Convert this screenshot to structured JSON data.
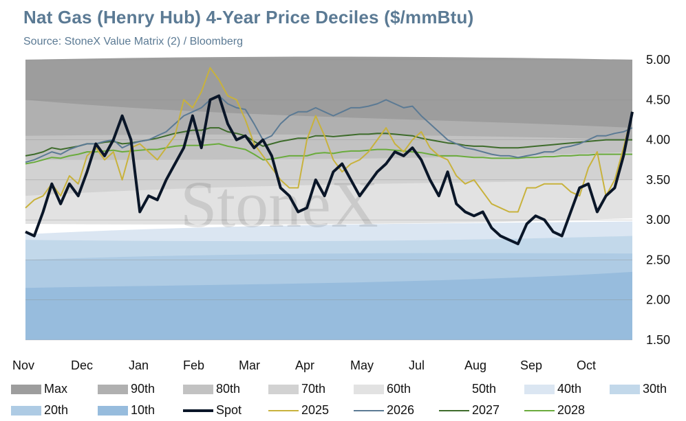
{
  "title": "Nat Gas (Henry Hub) 4-Year Price Deciles ($/mmBtu)",
  "subtitle": "Source: StoneX Value Matrix (2) / Bloomberg",
  "watermark": "StoneX",
  "chart_data": {
    "type": "area",
    "x_labels": [
      "Nov",
      "Dec",
      "Jan",
      "Feb",
      "Mar",
      "Apr",
      "May",
      "Jul",
      "Aug",
      "Sep",
      "Oct"
    ],
    "y_ticks": [
      "5.00",
      "4.50",
      "4.00",
      "3.50",
      "3.00",
      "2.50",
      "2.00",
      "1.50"
    ],
    "ylim": [
      1.5,
      5.0
    ],
    "y_axis_side": "right",
    "bands": [
      {
        "name": "Max",
        "color": "#9d9d9d",
        "start": 5.0,
        "end": 5.0
      },
      {
        "name": "90th",
        "color": "#b0b0b0",
        "start": 4.5,
        "end": 4.15
      },
      {
        "name": "80th",
        "color": "#c2c2c2",
        "start": 4.05,
        "end": 4.0
      },
      {
        "name": "70th",
        "color": "#d2d2d2",
        "start": 3.75,
        "end": 3.85
      },
      {
        "name": "60th",
        "color": "#e2e2e2",
        "start": 3.3,
        "end": 3.5
      },
      {
        "name": "50th",
        "color": "#ffffff",
        "start": 2.95,
        "end": 3.02
      },
      {
        "name": "40th",
        "color": "#dbe6f2",
        "start": 2.82,
        "end": 2.98
      },
      {
        "name": "30th",
        "color": "#c2d8ea",
        "start": 2.75,
        "end": 2.8
      },
      {
        "name": "20th",
        "color": "#aecbe4",
        "start": 2.5,
        "end": 2.58
      },
      {
        "name": "10th",
        "color": "#97bcdd",
        "start": 2.15,
        "end": 2.35
      }
    ],
    "series": [
      {
        "name": "Spot",
        "color": "#0a1628",
        "width": 4,
        "values": [
          2.85,
          2.8,
          3.1,
          3.45,
          3.2,
          3.45,
          3.3,
          3.6,
          3.95,
          3.8,
          4.0,
          4.3,
          4.0,
          3.1,
          3.3,
          3.25,
          3.5,
          3.7,
          3.9,
          4.3,
          3.9,
          4.5,
          4.55,
          4.2,
          4.0,
          4.05,
          3.9,
          4.0,
          3.8,
          3.4,
          3.3,
          3.1,
          3.15,
          3.5,
          3.3,
          3.6,
          3.7,
          3.5,
          3.3,
          3.45,
          3.6,
          3.7,
          3.85,
          3.8,
          3.9,
          3.75,
          3.5,
          3.3,
          3.6,
          3.2,
          3.1,
          3.05,
          3.1,
          2.9,
          2.8,
          2.75,
          2.7,
          2.95,
          3.05,
          3.0,
          2.85,
          2.8,
          3.1,
          3.4,
          3.45,
          3.1,
          3.3,
          3.4,
          3.8,
          4.35
        ]
      },
      {
        "name": "2025",
        "color": "#c8b23c",
        "width": 2,
        "values": [
          3.15,
          3.25,
          3.3,
          3.45,
          3.3,
          3.55,
          3.45,
          3.8,
          3.9,
          3.75,
          3.85,
          3.5,
          3.9,
          3.95,
          3.85,
          3.75,
          3.9,
          4.05,
          4.5,
          4.4,
          4.6,
          4.9,
          4.75,
          4.55,
          4.5,
          4.25,
          3.95,
          3.8,
          3.65,
          3.5,
          3.4,
          3.4,
          4.0,
          4.3,
          4.05,
          3.75,
          3.6,
          3.7,
          3.75,
          3.85,
          4.0,
          4.15,
          3.95,
          3.85,
          4.0,
          4.1,
          3.9,
          3.8,
          3.75,
          3.55,
          3.45,
          3.5,
          3.35,
          3.2,
          3.15,
          3.1,
          3.1,
          3.4,
          3.4,
          3.45,
          3.45,
          3.45,
          3.35,
          3.3,
          3.65,
          3.85,
          3.3,
          3.5,
          3.9,
          4.35
        ]
      },
      {
        "name": "2026",
        "color": "#5b7a94",
        "width": 2,
        "values": [
          3.72,
          3.75,
          3.8,
          3.85,
          3.82,
          3.88,
          3.92,
          3.95,
          3.95,
          3.98,
          4.0,
          3.9,
          3.95,
          3.98,
          4.0,
          4.05,
          4.1,
          4.2,
          4.3,
          4.35,
          4.4,
          4.5,
          4.55,
          4.45,
          4.4,
          4.38,
          4.2,
          4.0,
          4.05,
          4.2,
          4.3,
          4.35,
          4.35,
          4.4,
          4.35,
          4.3,
          4.35,
          4.4,
          4.4,
          4.42,
          4.45,
          4.5,
          4.45,
          4.4,
          4.42,
          4.3,
          4.2,
          4.1,
          4.0,
          3.95,
          3.9,
          3.88,
          3.85,
          3.82,
          3.8,
          3.8,
          3.78,
          3.8,
          3.82,
          3.85,
          3.85,
          3.9,
          3.92,
          3.95,
          4.0,
          4.05,
          4.05,
          4.08,
          4.1,
          4.15
        ]
      },
      {
        "name": "2027",
        "color": "#3d6b2a",
        "width": 2,
        "values": [
          3.8,
          3.82,
          3.85,
          3.9,
          3.88,
          3.9,
          3.92,
          3.95,
          3.95,
          3.97,
          3.98,
          3.95,
          3.96,
          3.98,
          4.0,
          4.02,
          4.05,
          4.08,
          4.1,
          4.12,
          4.12,
          4.15,
          4.15,
          4.1,
          4.08,
          4.05,
          3.98,
          3.92,
          3.95,
          3.98,
          4.0,
          4.02,
          4.02,
          4.05,
          4.05,
          4.04,
          4.05,
          4.06,
          4.07,
          4.07,
          4.08,
          4.08,
          4.07,
          4.06,
          4.05,
          4.02,
          4.0,
          3.98,
          3.96,
          3.95,
          3.93,
          3.92,
          3.92,
          3.91,
          3.9,
          3.9,
          3.9,
          3.91,
          3.92,
          3.93,
          3.94,
          3.95,
          3.96,
          3.97,
          3.98,
          3.99,
          4.0,
          4.0,
          4.0,
          4.0
        ]
      },
      {
        "name": "2028",
        "color": "#6aab3c",
        "width": 2,
        "values": [
          3.7,
          3.72,
          3.75,
          3.78,
          3.77,
          3.8,
          3.82,
          3.85,
          3.85,
          3.86,
          3.87,
          3.85,
          3.86,
          3.87,
          3.88,
          3.88,
          3.9,
          3.92,
          3.93,
          3.93,
          3.93,
          3.94,
          3.95,
          3.92,
          3.9,
          3.88,
          3.82,
          3.75,
          3.76,
          3.78,
          3.8,
          3.8,
          3.8,
          3.83,
          3.84,
          3.83,
          3.85,
          3.86,
          3.86,
          3.87,
          3.88,
          3.88,
          3.87,
          3.86,
          3.85,
          3.84,
          3.82,
          3.8,
          3.8,
          3.8,
          3.79,
          3.78,
          3.78,
          3.77,
          3.77,
          3.77,
          3.77,
          3.78,
          3.78,
          3.79,
          3.79,
          3.8,
          3.8,
          3.81,
          3.81,
          3.82,
          3.82,
          3.82,
          3.82,
          3.82
        ]
      }
    ],
    "legend": [
      {
        "label": "Max",
        "kind": "band",
        "color": "#9d9d9d"
      },
      {
        "label": "90th",
        "kind": "band",
        "color": "#b0b0b0"
      },
      {
        "label": "80th",
        "kind": "band",
        "color": "#c2c2c2"
      },
      {
        "label": "70th",
        "kind": "band",
        "color": "#d2d2d2"
      },
      {
        "label": "60th",
        "kind": "band",
        "color": "#e2e2e2"
      },
      {
        "label": "50th",
        "kind": "band",
        "color": "#ffffff"
      },
      {
        "label": "40th",
        "kind": "band",
        "color": "#dbe6f2"
      },
      {
        "label": "30th",
        "kind": "band",
        "color": "#c2d8ea"
      },
      {
        "label": "20th",
        "kind": "band",
        "color": "#aecbe4"
      },
      {
        "label": "10th",
        "kind": "band",
        "color": "#97bcdd"
      },
      {
        "label": "Spot",
        "kind": "line",
        "color": "#0a1628"
      },
      {
        "label": "2025",
        "kind": "line",
        "color": "#c8b23c"
      },
      {
        "label": "2026",
        "kind": "line",
        "color": "#5b7a94"
      },
      {
        "label": "2027",
        "kind": "line",
        "color": "#3d6b2a"
      },
      {
        "label": "2028",
        "kind": "line",
        "color": "#6aab3c"
      }
    ]
  }
}
